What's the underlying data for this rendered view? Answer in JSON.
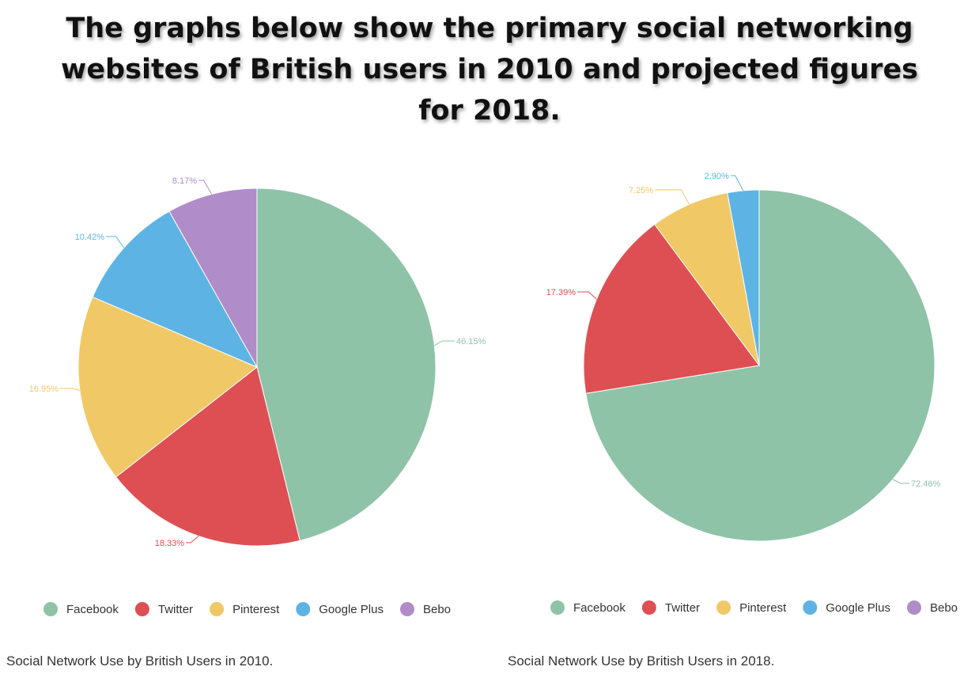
{
  "heading": "The graphs below show the primary social networking websites of British users in 2010 and projected figures for 2018.",
  "colors": {
    "Facebook": "#8ec3a8",
    "Twitter": "#de4f53",
    "Pinterest": "#f0c866",
    "Google Plus": "#5db4e4",
    "Bebo": "#b08cc9"
  },
  "chart_data": [
    {
      "type": "pie",
      "title": "Social Network Use by British Users in 2010.",
      "legend_position": "bottom",
      "slices": [
        {
          "label": "Facebook",
          "value": 46.15,
          "display": "46.15%"
        },
        {
          "label": "Twitter",
          "value": 18.33,
          "display": "18.33%"
        },
        {
          "label": "Pinterest",
          "value": 16.95,
          "display": "16.95%"
        },
        {
          "label": "Google Plus",
          "value": 10.42,
          "display": "10.42%"
        },
        {
          "label": "Bebo",
          "value": 8.17,
          "display": "8.17%"
        }
      ],
      "legend": [
        "Facebook",
        "Twitter",
        "Pinterest",
        "Google Plus",
        "Bebo"
      ]
    },
    {
      "type": "pie",
      "title": "Social Network Use by British Users in 2018.",
      "legend_position": "bottom",
      "slices": [
        {
          "label": "Facebook",
          "value": 72.46,
          "display": "72.46%"
        },
        {
          "label": "Twitter",
          "value": 17.39,
          "display": "17.39%"
        },
        {
          "label": "Pinterest",
          "value": 7.25,
          "display": "7.25%"
        },
        {
          "label": "Google Plus",
          "value": 2.9,
          "display": "2.90%"
        },
        {
          "label": "Bebo",
          "value": 0,
          "display": ""
        }
      ],
      "legend": [
        "Facebook",
        "Twitter",
        "Pinterest",
        "Google Plus",
        "Bebo"
      ]
    }
  ]
}
